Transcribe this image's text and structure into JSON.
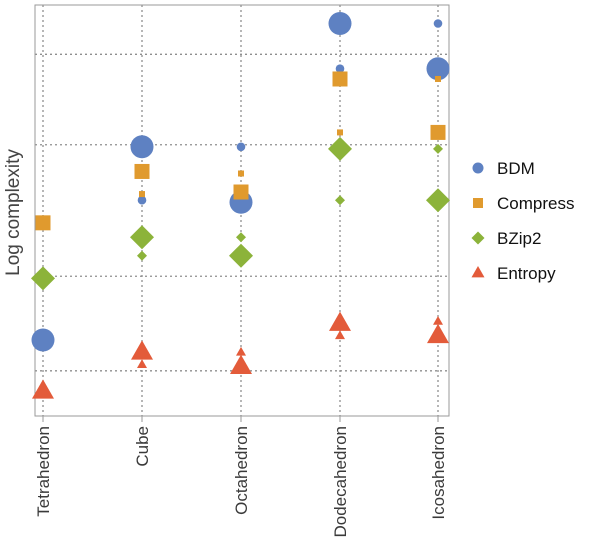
{
  "chart_data": {
    "type": "scatter",
    "title": "",
    "ylabel": "Log complexity",
    "xlabel": "",
    "categories": [
      "Tetrahedron",
      "Cube",
      "Octahedron",
      "Dodecahedron",
      "Icosahedron"
    ],
    "ylim": [
      0,
      100
    ],
    "grid": true,
    "y_grid_values": [
      11,
      34,
      66,
      88
    ],
    "legend_position": "right",
    "series": [
      {
        "name": "BDM",
        "marker": "circle",
        "color": "#5e81c2",
        "points": [
          {
            "category": "Tetrahedron",
            "y": 18.5,
            "size": "large"
          },
          {
            "category": "Cube",
            "y": 65.5,
            "size": "large"
          },
          {
            "category": "Cube",
            "y": 52.5,
            "size": "small"
          },
          {
            "category": "Octahedron",
            "y": 65.5,
            "size": "small"
          },
          {
            "category": "Octahedron",
            "y": 52,
            "size": "large"
          },
          {
            "category": "Dodecahedron",
            "y": 95.5,
            "size": "large"
          },
          {
            "category": "Dodecahedron",
            "y": 84.5,
            "size": "small"
          },
          {
            "category": "Icosahedron",
            "y": 95.5,
            "size": "small"
          },
          {
            "category": "Icosahedron",
            "y": 84.5,
            "size": "large"
          }
        ]
      },
      {
        "name": "Compress",
        "marker": "square",
        "color": "#e09a2e",
        "points": [
          {
            "category": "Tetrahedron",
            "y": 47,
            "size": "large"
          },
          {
            "category": "Cube",
            "y": 59.5,
            "size": "large"
          },
          {
            "category": "Cube",
            "y": 54,
            "size": "small"
          },
          {
            "category": "Octahedron",
            "y": 59,
            "size": "small"
          },
          {
            "category": "Octahedron",
            "y": 54.5,
            "size": "large"
          },
          {
            "category": "Dodecahedron",
            "y": 82,
            "size": "large"
          },
          {
            "category": "Dodecahedron",
            "y": 69,
            "size": "small"
          },
          {
            "category": "Icosahedron",
            "y": 82,
            "size": "small"
          },
          {
            "category": "Icosahedron",
            "y": 69,
            "size": "large"
          }
        ]
      },
      {
        "name": "BZip2",
        "marker": "diamond",
        "color": "#8cb33a",
        "points": [
          {
            "category": "Tetrahedron",
            "y": 33.5,
            "size": "large"
          },
          {
            "category": "Cube",
            "y": 43.5,
            "size": "large"
          },
          {
            "category": "Cube",
            "y": 39,
            "size": "small"
          },
          {
            "category": "Octahedron",
            "y": 43.5,
            "size": "small"
          },
          {
            "category": "Octahedron",
            "y": 39,
            "size": "large"
          },
          {
            "category": "Dodecahedron",
            "y": 65,
            "size": "large"
          },
          {
            "category": "Dodecahedron",
            "y": 52.5,
            "size": "small"
          },
          {
            "category": "Icosahedron",
            "y": 65,
            "size": "small"
          },
          {
            "category": "Icosahedron",
            "y": 52.5,
            "size": "large"
          }
        ]
      },
      {
        "name": "Entropy",
        "marker": "triangle",
        "color": "#e35b3a",
        "points": [
          {
            "category": "Tetrahedron",
            "y": 6,
            "size": "large"
          },
          {
            "category": "Cube",
            "y": 15.5,
            "size": "large"
          },
          {
            "category": "Cube",
            "y": 12.5,
            "size": "small"
          },
          {
            "category": "Octahedron",
            "y": 15.5,
            "size": "small"
          },
          {
            "category": "Octahedron",
            "y": 12,
            "size": "large"
          },
          {
            "category": "Dodecahedron",
            "y": 22.5,
            "size": "large"
          },
          {
            "category": "Dodecahedron",
            "y": 19.5,
            "size": "small"
          },
          {
            "category": "Icosahedron",
            "y": 23,
            "size": "small"
          },
          {
            "category": "Icosahedron",
            "y": 19.5,
            "size": "large"
          }
        ]
      }
    ]
  }
}
